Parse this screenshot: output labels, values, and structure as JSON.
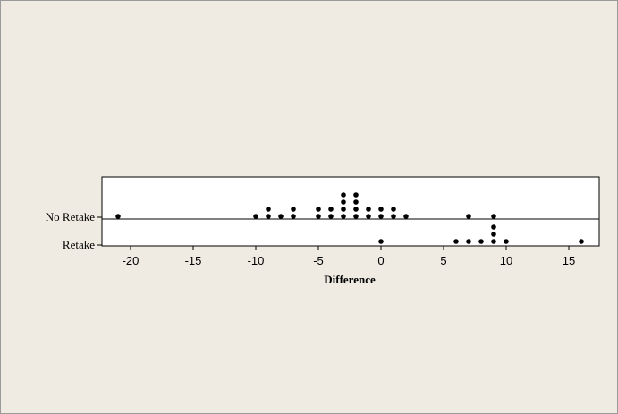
{
  "colors": {
    "background": "#efebe2",
    "plot_area": "#ffffff",
    "dot": "#000000",
    "line": "#000000"
  },
  "chart_data": {
    "type": "scatter",
    "subtype": "dotplot",
    "title": "",
    "xlabel": "Difference",
    "ylabel": "",
    "xlim": [
      -22,
      18
    ],
    "xticks": [
      -20,
      -15,
      -10,
      -5,
      0,
      5,
      10,
      15
    ],
    "grid": false,
    "legend": "none",
    "categories": [
      "No Retake",
      "Retake"
    ],
    "series": [
      {
        "name": "No Retake",
        "values": [
          -21,
          -10,
          -9,
          -9,
          -8,
          -7,
          -7,
          -5,
          -5,
          -4,
          -4,
          -3,
          -3,
          -3,
          -3,
          -2,
          -2,
          -2,
          -2,
          -1,
          -1,
          0,
          0,
          1,
          1,
          2,
          7,
          9
        ]
      },
      {
        "name": "Retake",
        "values": [
          0,
          6,
          7,
          8,
          9,
          9,
          9,
          10,
          16
        ]
      }
    ]
  }
}
